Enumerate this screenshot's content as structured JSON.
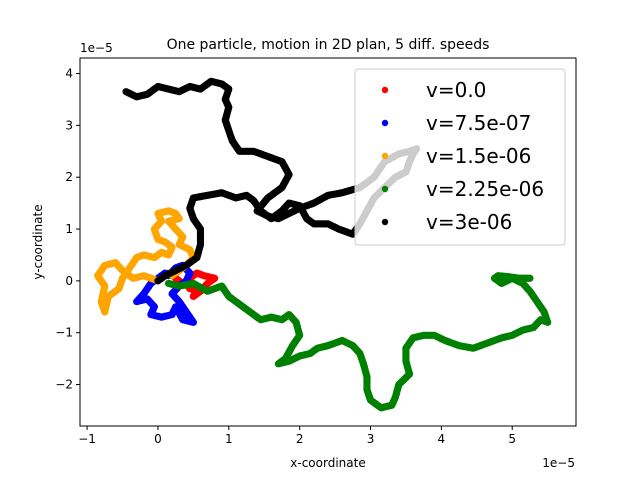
{
  "chart_data": {
    "type": "scatter",
    "title": "One particle, motion in 2D plan, 5 diff. speeds",
    "xlabel": "x-coordinate",
    "ylabel": "y-coordinate",
    "x_offset_text": "1e−5",
    "y_offset_text": "1e−5",
    "xlim": [
      -1.1,
      5.9
    ],
    "ylim": [
      -2.8,
      4.3
    ],
    "xticks": [
      -1,
      0,
      1,
      2,
      3,
      4,
      5
    ],
    "yticks": [
      -2,
      -1,
      0,
      1,
      2,
      3,
      4
    ],
    "grid": false,
    "legend_position": "upper right",
    "series": [
      {
        "name": "v=0.0",
        "color": "#ff0000",
        "path": [
          [
            0.25,
            0.05
          ],
          [
            0.35,
            -0.05
          ],
          [
            0.45,
            0.05
          ],
          [
            0.55,
            0.15
          ],
          [
            0.65,
            0.1
          ],
          [
            0.8,
            0.05
          ],
          [
            0.7,
            -0.05
          ],
          [
            0.6,
            -0.2
          ],
          [
            0.5,
            -0.3
          ],
          [
            0.55,
            -0.1
          ],
          [
            0.45,
            -0.15
          ],
          [
            0.4,
            -0.05
          ]
        ]
      },
      {
        "name": "v=7.5e-07",
        "color": "#0000ff",
        "path": [
          [
            0.3,
            0.2
          ],
          [
            0.2,
            0.1
          ],
          [
            0.1,
            0.15
          ],
          [
            0.0,
            0.05
          ],
          [
            -0.1,
            -0.05
          ],
          [
            -0.2,
            -0.25
          ],
          [
            -0.3,
            -0.4
          ],
          [
            -0.15,
            -0.35
          ],
          [
            -0.05,
            -0.5
          ],
          [
            -0.1,
            -0.65
          ],
          [
            0.05,
            -0.7
          ],
          [
            0.2,
            -0.65
          ],
          [
            0.25,
            -0.5
          ],
          [
            0.35,
            -0.75
          ],
          [
            0.5,
            -0.8
          ],
          [
            0.4,
            -0.6
          ],
          [
            0.3,
            -0.4
          ],
          [
            0.2,
            -0.25
          ],
          [
            0.3,
            -0.1
          ],
          [
            0.4,
            0.0
          ],
          [
            0.45,
            0.15
          ],
          [
            0.35,
            0.3
          ],
          [
            0.25,
            0.25
          ],
          [
            0.15,
            0.1
          ]
        ]
      },
      {
        "name": "v=1.5e-06",
        "color": "#ffa500",
        "path": [
          [
            0.0,
            0.0
          ],
          [
            -0.2,
            0.1
          ],
          [
            -0.35,
            0.05
          ],
          [
            -0.5,
            0.2
          ],
          [
            -0.6,
            0.35
          ],
          [
            -0.75,
            0.3
          ],
          [
            -0.85,
            0.1
          ],
          [
            -0.75,
            -0.1
          ],
          [
            -0.8,
            -0.4
          ],
          [
            -0.75,
            -0.6
          ],
          [
            -0.7,
            -0.3
          ],
          [
            -0.55,
            -0.15
          ],
          [
            -0.5,
            0.05
          ],
          [
            -0.4,
            0.25
          ],
          [
            -0.3,
            0.45
          ],
          [
            -0.2,
            0.5
          ],
          [
            -0.05,
            0.45
          ],
          [
            0.05,
            0.55
          ],
          [
            0.15,
            0.5
          ],
          [
            0.2,
            0.65
          ],
          [
            0.1,
            0.75
          ],
          [
            0.0,
            0.8
          ],
          [
            -0.05,
            1.0
          ],
          [
            0.05,
            1.15
          ],
          [
            0.0,
            1.3
          ],
          [
            0.15,
            1.35
          ],
          [
            0.25,
            1.3
          ],
          [
            0.3,
            1.2
          ],
          [
            0.15,
            1.15
          ],
          [
            0.25,
            1.0
          ],
          [
            0.35,
            0.85
          ],
          [
            0.3,
            0.7
          ],
          [
            0.45,
            0.6
          ],
          [
            0.5,
            0.45
          ],
          [
            0.4,
            0.3
          ],
          [
            0.3,
            0.2
          ],
          [
            0.2,
            0.1
          ]
        ]
      },
      {
        "name": "v=2.25e-06",
        "color": "#008000",
        "path": [
          [
            0.15,
            -0.05
          ],
          [
            0.3,
            -0.1
          ],
          [
            0.5,
            -0.05
          ],
          [
            0.7,
            -0.2
          ],
          [
            0.9,
            -0.1
          ],
          [
            1.0,
            -0.3
          ],
          [
            1.15,
            -0.45
          ],
          [
            1.3,
            -0.6
          ],
          [
            1.45,
            -0.75
          ],
          [
            1.6,
            -0.7
          ],
          [
            1.75,
            -0.75
          ],
          [
            1.85,
            -0.65
          ],
          [
            1.95,
            -0.8
          ],
          [
            2.0,
            -1.05
          ],
          [
            1.9,
            -1.25
          ],
          [
            1.8,
            -1.5
          ],
          [
            1.7,
            -1.6
          ],
          [
            1.85,
            -1.55
          ],
          [
            2.0,
            -1.45
          ],
          [
            2.15,
            -1.4
          ],
          [
            2.25,
            -1.3
          ],
          [
            2.4,
            -1.25
          ],
          [
            2.5,
            -1.2
          ],
          [
            2.6,
            -1.15
          ],
          [
            2.75,
            -1.25
          ],
          [
            2.85,
            -1.4
          ],
          [
            2.9,
            -1.6
          ],
          [
            2.95,
            -1.85
          ],
          [
            2.95,
            -2.1
          ],
          [
            3.0,
            -2.3
          ],
          [
            3.15,
            -2.45
          ],
          [
            3.3,
            -2.4
          ],
          [
            3.35,
            -2.25
          ],
          [
            3.4,
            -2.0
          ],
          [
            3.55,
            -1.8
          ],
          [
            3.5,
            -1.55
          ],
          [
            3.5,
            -1.3
          ],
          [
            3.6,
            -1.1
          ],
          [
            3.75,
            -1.05
          ],
          [
            3.9,
            -1.05
          ],
          [
            4.05,
            -1.15
          ],
          [
            4.25,
            -1.25
          ],
          [
            4.45,
            -1.3
          ],
          [
            4.65,
            -1.2
          ],
          [
            4.85,
            -1.1
          ],
          [
            5.0,
            -1.05
          ],
          [
            5.15,
            -0.95
          ],
          [
            5.3,
            -0.9
          ],
          [
            5.4,
            -0.75
          ],
          [
            5.5,
            -0.8
          ],
          [
            5.45,
            -0.6
          ],
          [
            5.35,
            -0.4
          ],
          [
            5.25,
            -0.2
          ],
          [
            5.15,
            -0.05
          ],
          [
            5.0,
            0.05
          ],
          [
            4.85,
            -0.05
          ],
          [
            4.75,
            0.05
          ],
          [
            4.8,
            0.1
          ],
          [
            4.95,
            0.08
          ],
          [
            5.1,
            0.05
          ],
          [
            5.25,
            0.05
          ]
        ]
      },
      {
        "name": "v=3e-06",
        "color": "#000000",
        "path": [
          [
            0.0,
            0.0
          ],
          [
            0.1,
            0.1
          ],
          [
            0.25,
            0.2
          ],
          [
            0.4,
            0.3
          ],
          [
            0.55,
            0.45
          ],
          [
            0.6,
            0.7
          ],
          [
            0.6,
            1.0
          ],
          [
            0.5,
            1.2
          ],
          [
            0.45,
            1.4
          ],
          [
            0.5,
            1.6
          ],
          [
            0.7,
            1.65
          ],
          [
            0.9,
            1.7
          ],
          [
            1.1,
            1.6
          ],
          [
            1.25,
            1.65
          ],
          [
            1.35,
            1.55
          ],
          [
            1.45,
            1.35
          ],
          [
            1.6,
            1.2
          ],
          [
            1.75,
            1.35
          ],
          [
            1.85,
            1.5
          ],
          [
            2.0,
            1.45
          ],
          [
            2.1,
            1.2
          ],
          [
            2.2,
            1.1
          ],
          [
            2.4,
            1.1
          ],
          [
            2.55,
            1.0
          ],
          [
            2.75,
            0.9
          ],
          [
            2.85,
            1.1
          ],
          [
            2.95,
            1.35
          ],
          [
            3.05,
            1.6
          ],
          [
            3.2,
            1.8
          ],
          [
            3.35,
            2.0
          ],
          [
            3.5,
            2.1
          ],
          [
            3.55,
            2.3
          ],
          [
            3.6,
            2.45
          ],
          [
            3.65,
            2.55
          ],
          [
            3.55,
            2.5
          ],
          [
            3.4,
            2.45
          ],
          [
            3.2,
            2.3
          ],
          [
            3.05,
            2.0
          ],
          [
            2.85,
            1.8
          ],
          [
            2.6,
            1.7
          ],
          [
            2.4,
            1.65
          ],
          [
            2.2,
            1.5
          ],
          [
            2.0,
            1.4
          ],
          [
            1.85,
            1.3
          ],
          [
            1.7,
            1.2
          ],
          [
            1.55,
            1.25
          ],
          [
            1.4,
            1.35
          ],
          [
            1.55,
            1.6
          ],
          [
            1.75,
            1.8
          ],
          [
            1.85,
            2.05
          ],
          [
            1.75,
            2.3
          ],
          [
            1.55,
            2.4
          ],
          [
            1.35,
            2.5
          ],
          [
            1.15,
            2.5
          ],
          [
            1.05,
            2.7
          ],
          [
            1.0,
            2.9
          ],
          [
            0.95,
            3.1
          ],
          [
            1.0,
            3.35
          ],
          [
            0.95,
            3.5
          ],
          [
            1.0,
            3.7
          ],
          [
            0.9,
            3.8
          ],
          [
            0.75,
            3.85
          ],
          [
            0.6,
            3.7
          ],
          [
            0.45,
            3.75
          ],
          [
            0.3,
            3.65
          ],
          [
            0.15,
            3.7
          ],
          [
            0.0,
            3.75
          ],
          [
            -0.15,
            3.6
          ],
          [
            -0.3,
            3.55
          ],
          [
            -0.45,
            3.65
          ]
        ]
      }
    ]
  }
}
